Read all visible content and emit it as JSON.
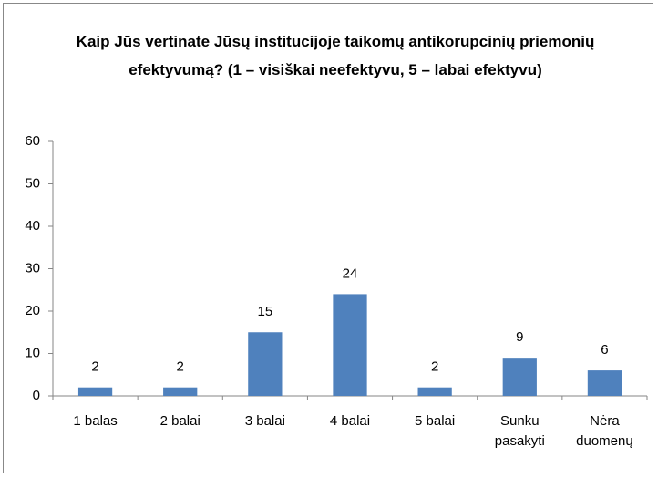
{
  "chart_data": {
    "type": "bar",
    "title": "Kaip Jūs vertinate Jūsų institucijoje taikomų antikorupcinių priemonių efektyvumą? (1 – visiškai neefektyvu, 5 – labai efektyvu)",
    "categories": [
      "1 balas",
      "2 balai",
      "3 balai",
      "4 balai",
      "5 balai",
      "Sunku pasakyti",
      "Nėra duomenų"
    ],
    "values": [
      2,
      2,
      15,
      24,
      2,
      9,
      6
    ],
    "color": "#4f81bd",
    "ylim": [
      0,
      60
    ],
    "yticks": [
      0,
      10,
      20,
      30,
      40,
      50,
      60
    ],
    "grid": false
  }
}
